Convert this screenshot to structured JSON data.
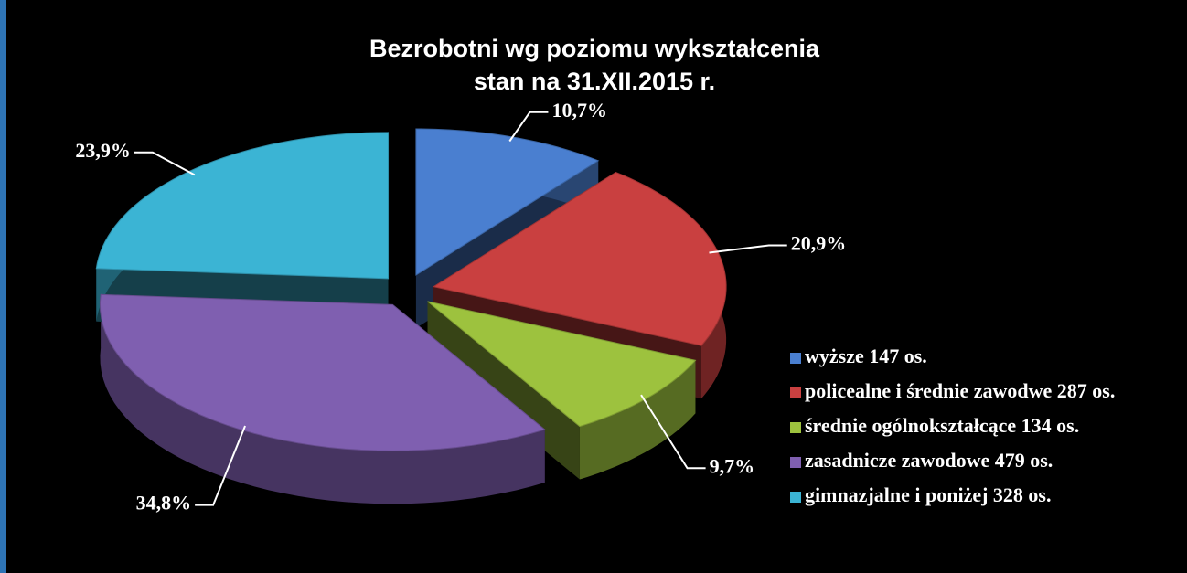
{
  "chart_data": {
    "type": "pie",
    "title": [
      "Bezrobotni wg poziomu wykształcenia",
      "stan na 31.XII.2015 r."
    ],
    "categories": [
      "wyższe 147 os.",
      "policealne i średnie zawodwe 287 os.",
      "średnie ogólnokształcące 134 os.",
      "zasadnicze zawodowe 479 os.",
      "gimnazjalne i poniżej 328 os."
    ],
    "values": [
      10.7,
      20.9,
      9.7,
      34.8,
      23.9
    ],
    "value_labels": [
      "10,7%",
      "20,9%",
      "9,7%",
      "34,8%",
      "23,9%"
    ],
    "colors": [
      "#4a7fd0",
      "#c94040",
      "#9dc23e",
      "#7f5fb0",
      "#3bb4d4"
    ],
    "legend": "right"
  }
}
